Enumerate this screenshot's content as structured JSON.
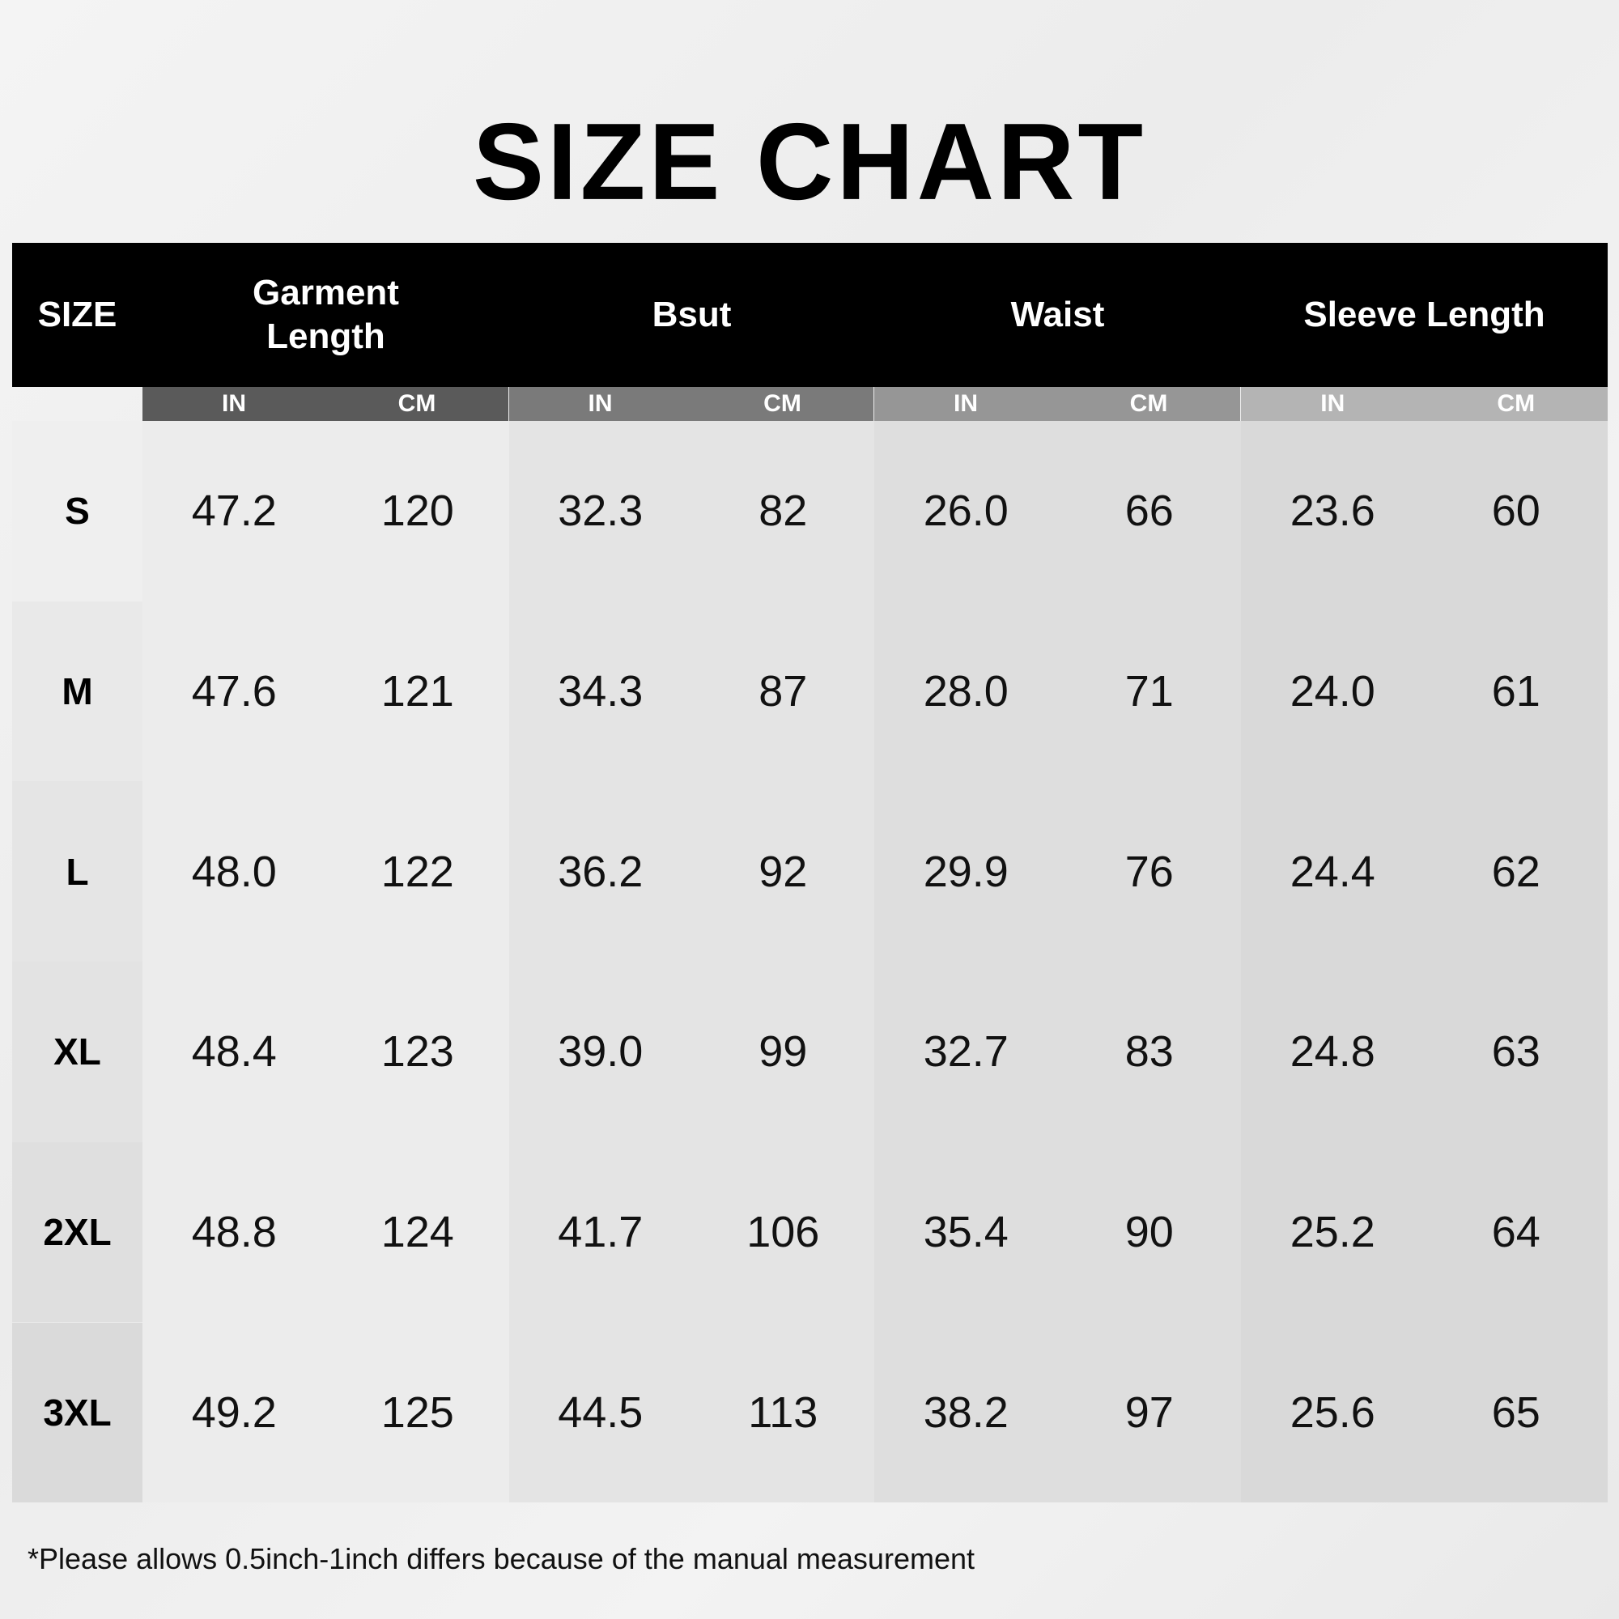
{
  "title": "SIZE CHART",
  "headers": {
    "size": "SIZE",
    "groups": [
      "Garment Length",
      "Bsut",
      "Waist",
      "Sleeve Length"
    ],
    "units": [
      "IN",
      "CM"
    ]
  },
  "colors": {
    "header_bg": "#000000",
    "subheader": [
      "#5a5a5a",
      "#7a7a7a",
      "#969696",
      "#b4b4b4"
    ],
    "columns": [
      "#ececec",
      "#e4e4e4",
      "#dedede",
      "#d9d9d9"
    ]
  },
  "rows": [
    {
      "size": "S",
      "values": [
        "47.2",
        "120",
        "32.3",
        "82",
        "26.0",
        "66",
        "23.6",
        "60"
      ]
    },
    {
      "size": "M",
      "values": [
        "47.6",
        "121",
        "34.3",
        "87",
        "28.0",
        "71",
        "24.0",
        "61"
      ]
    },
    {
      "size": "L",
      "values": [
        "48.0",
        "122",
        "36.2",
        "92",
        "29.9",
        "76",
        "24.4",
        "62"
      ]
    },
    {
      "size": "XL",
      "values": [
        "48.4",
        "123",
        "39.0",
        "99",
        "32.7",
        "83",
        "24.8",
        "63"
      ]
    },
    {
      "size": "2XL",
      "values": [
        "48.8",
        "124",
        "41.7",
        "106",
        "35.4",
        "90",
        "25.2",
        "64"
      ]
    },
    {
      "size": "3XL",
      "values": [
        "49.2",
        "125",
        "44.5",
        "113",
        "38.2",
        "97",
        "25.6",
        "65"
      ]
    }
  ],
  "note": "*Please allows 0.5inch-1inch differs because of the manual measurement"
}
